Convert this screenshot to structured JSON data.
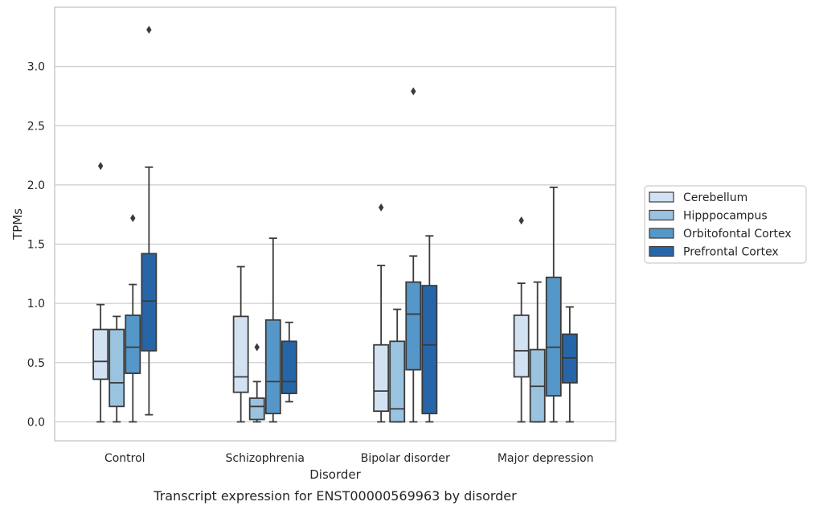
{
  "chart_data": {
    "type": "box",
    "xlabel": "Disorder",
    "ylabel": "TPMs",
    "caption": "Transcript expression for ENST00000569963 by disorder",
    "ylim": [
      -0.16,
      3.5
    ],
    "yticks": [
      "0.0",
      "0.5",
      "1.0",
      "1.5",
      "2.0",
      "2.5",
      "3.0"
    ],
    "grid": true,
    "legend_position": "right",
    "categories": [
      "Control",
      "Schizophrenia",
      "Bipolar disorder",
      "Major depression"
    ],
    "series": [
      {
        "name": "Cerebellum",
        "color": "#d3e2f2",
        "boxes": [
          {
            "whislo": 0.0,
            "q1": 0.36,
            "median": 0.51,
            "q3": 0.78,
            "whishi": 0.99,
            "fliers": [
              2.16
            ]
          },
          {
            "whislo": 0.0,
            "q1": 0.25,
            "median": 0.38,
            "q3": 0.89,
            "whishi": 1.31,
            "fliers": []
          },
          {
            "whislo": 0.0,
            "q1": 0.09,
            "median": 0.26,
            "q3": 0.65,
            "whishi": 1.32,
            "fliers": [
              1.81
            ]
          },
          {
            "whislo": 0.0,
            "q1": 0.38,
            "median": 0.6,
            "q3": 0.9,
            "whishi": 1.17,
            "fliers": [
              1.7
            ]
          }
        ]
      },
      {
        "name": "Hipppocampus",
        "color": "#9ac3df",
        "boxes": [
          {
            "whislo": 0.0,
            "q1": 0.13,
            "median": 0.33,
            "q3": 0.78,
            "whishi": 0.89,
            "fliers": []
          },
          {
            "whislo": 0.0,
            "q1": 0.02,
            "median": 0.13,
            "q3": 0.2,
            "whishi": 0.34,
            "fliers": [
              0.63
            ]
          },
          {
            "whislo": 0.0,
            "q1": 0.0,
            "median": 0.11,
            "q3": 0.68,
            "whishi": 0.95,
            "fliers": []
          },
          {
            "whislo": 0.0,
            "q1": 0.0,
            "median": 0.3,
            "q3": 0.61,
            "whishi": 1.18,
            "fliers": []
          }
        ]
      },
      {
        "name": "Orbitofontal Cortex",
        "color": "#5597c8",
        "boxes": [
          {
            "whislo": 0.0,
            "q1": 0.41,
            "median": 0.63,
            "q3": 0.9,
            "whishi": 1.16,
            "fliers": [
              1.72
            ]
          },
          {
            "whislo": 0.0,
            "q1": 0.07,
            "median": 0.34,
            "q3": 0.86,
            "whishi": 1.55,
            "fliers": []
          },
          {
            "whislo": 0.0,
            "q1": 0.44,
            "median": 0.91,
            "q3": 1.18,
            "whishi": 1.4,
            "fliers": [
              2.79
            ]
          },
          {
            "whislo": 0.0,
            "q1": 0.22,
            "median": 0.63,
            "q3": 1.22,
            "whishi": 1.98,
            "fliers": []
          }
        ]
      },
      {
        "name": "Prefrontal Cortex",
        "color": "#2666a8",
        "boxes": [
          {
            "whislo": 0.06,
            "q1": 0.6,
            "median": 1.02,
            "q3": 1.42,
            "whishi": 2.15,
            "fliers": [
              3.31
            ]
          },
          {
            "whislo": 0.17,
            "q1": 0.24,
            "median": 0.34,
            "q3": 0.68,
            "whishi": 0.84,
            "fliers": []
          },
          {
            "whislo": 0.0,
            "q1": 0.07,
            "median": 0.65,
            "q3": 1.15,
            "whishi": 1.57,
            "fliers": []
          },
          {
            "whislo": 0.0,
            "q1": 0.33,
            "median": 0.54,
            "q3": 0.74,
            "whishi": 0.97,
            "fliers": []
          }
        ]
      }
    ]
  }
}
